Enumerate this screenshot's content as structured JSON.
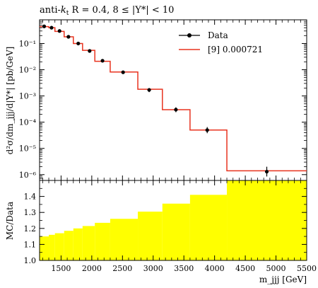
{
  "chart_data": [
    {
      "type": "line",
      "panel": "main",
      "title_prefix": "anti-",
      "title_k": "k",
      "title_k_sub": "t",
      "title_rest": " R = 0.4, 8 ≤ |Y*| < 10",
      "xlabel": "",
      "ylabel": "d²σ/dm_jjj/d|Y*| [pb/GeV]",
      "yscale": "log",
      "xlim": [
        1150,
        5500
      ],
      "ylim": [
        6e-07,
        0.8
      ],
      "ytick_values": [
        1e-06,
        1e-05,
        0.0001,
        0.001,
        0.01,
        0.1
      ],
      "ytick_labels": [
        "10⁻⁶",
        "10⁻⁵",
        "10⁻⁴",
        "10⁻³",
        "10⁻²",
        "10⁻¹"
      ],
      "legend_position": "top-right",
      "series": [
        {
          "name": "Data",
          "style": "points",
          "color": "#000000",
          "points": [
            {
              "x": 1225,
              "y": 0.45,
              "lo": 0.42,
              "hi": 0.48
            },
            {
              "x": 1345,
              "y": 0.4,
              "lo": 0.37,
              "hi": 0.43
            },
            {
              "x": 1475,
              "y": 0.3,
              "lo": 0.28,
              "hi": 0.32
            },
            {
              "x": 1620,
              "y": 0.18,
              "lo": 0.165,
              "hi": 0.195
            },
            {
              "x": 1780,
              "y": 0.1,
              "lo": 0.092,
              "hi": 0.108
            },
            {
              "x": 1965,
              "y": 0.052,
              "lo": 0.047,
              "hi": 0.057
            },
            {
              "x": 2175,
              "y": 0.022,
              "lo": 0.0195,
              "hi": 0.0245
            },
            {
              "x": 2510,
              "y": 0.008,
              "lo": 0.007,
              "hi": 0.009
            },
            {
              "x": 2935,
              "y": 0.0017,
              "lo": 0.0014,
              "hi": 0.002
            },
            {
              "x": 3370,
              "y": 0.0003,
              "lo": 0.00024,
              "hi": 0.00037
            },
            {
              "x": 3880,
              "y": 5e-05,
              "lo": 3.8e-05,
              "hi": 6.5e-05
            },
            {
              "x": 4850,
              "y": 1.3e-06,
              "lo": 8.5e-07,
              "hi": 2e-06
            }
          ]
        },
        {
          "name": "[9] 0.000721",
          "style": "step",
          "color": "#e8331f",
          "bins": [
            {
              "x0": 1150,
              "x1": 1300,
              "y": 0.44
            },
            {
              "x0": 1300,
              "x1": 1400,
              "y": 0.4
            },
            {
              "x0": 1400,
              "x1": 1550,
              "y": 0.29
            },
            {
              "x0": 1550,
              "x1": 1700,
              "y": 0.18
            },
            {
              "x0": 1700,
              "x1": 1850,
              "y": 0.1
            },
            {
              "x0": 1850,
              "x1": 2050,
              "y": 0.055
            },
            {
              "x0": 2050,
              "x1": 2300,
              "y": 0.021
            },
            {
              "x0": 2300,
              "x1": 2750,
              "y": 0.0082
            },
            {
              "x0": 2750,
              "x1": 3150,
              "y": 0.0018
            },
            {
              "x0": 3150,
              "x1": 3600,
              "y": 0.0003
            },
            {
              "x0": 3600,
              "x1": 4200,
              "y": 5e-05
            },
            {
              "x0": 4200,
              "x1": 5500,
              "y": 1.4e-06
            }
          ]
        }
      ]
    },
    {
      "type": "area",
      "panel": "ratio",
      "xlabel": "m_jjj [GeV]",
      "ylabel": "MC/Data",
      "xlim": [
        1150,
        5500
      ],
      "ylim": [
        1.0,
        1.5
      ],
      "xtick_values": [
        1500,
        2000,
        2500,
        3000,
        3500,
        4000,
        4500,
        5000,
        5500
      ],
      "xtick_labels": [
        "1500",
        "2000",
        "2500",
        "3000",
        "3500",
        "4000",
        "4500",
        "5000",
        "5500"
      ],
      "ytick_values": [
        1.0,
        1.1,
        1.2,
        1.3,
        1.4
      ],
      "ytick_labels": [
        "1.0",
        "1.1",
        "1.2",
        "1.3",
        "1.4"
      ],
      "fill_color": "#ffff00",
      "bins": [
        {
          "x0": 1150,
          "x1": 1300,
          "y": 1.15
        },
        {
          "x0": 1300,
          "x1": 1400,
          "y": 1.16
        },
        {
          "x0": 1400,
          "x1": 1550,
          "y": 1.17
        },
        {
          "x0": 1550,
          "x1": 1700,
          "y": 1.185
        },
        {
          "x0": 1700,
          "x1": 1850,
          "y": 1.2
        },
        {
          "x0": 1850,
          "x1": 2050,
          "y": 1.215
        },
        {
          "x0": 2050,
          "x1": 2300,
          "y": 1.235
        },
        {
          "x0": 2300,
          "x1": 2750,
          "y": 1.26
        },
        {
          "x0": 2750,
          "x1": 3150,
          "y": 1.305
        },
        {
          "x0": 3150,
          "x1": 3600,
          "y": 1.355
        },
        {
          "x0": 3600,
          "x1": 4200,
          "y": 1.41
        },
        {
          "x0": 4200,
          "x1": 5500,
          "y": 1.5
        }
      ]
    }
  ]
}
